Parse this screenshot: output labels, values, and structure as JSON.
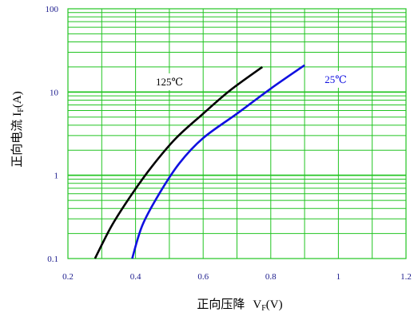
{
  "chart_data": {
    "type": "line",
    "xlabel": "正向压降",
    "xlabel_symbol": "V",
    "xlabel_sub": "F",
    "xlabel_unit": "(V)",
    "ylabel": "正向电流",
    "ylabel_symbol": "I",
    "ylabel_sub": "F",
    "ylabel_unit": "(A)",
    "xlim": [
      0.2,
      1.2
    ],
    "ylim": [
      0.1,
      100
    ],
    "y_scale": "log",
    "x_ticks": [
      "0.2",
      "0.4",
      "0.6",
      "0.8",
      "1",
      "1.2"
    ],
    "y_ticks": [
      "0.1",
      "1",
      "10",
      "100"
    ],
    "grid": true,
    "grid_color": "#22c422",
    "series": [
      {
        "name": "125℃",
        "color": "#000000",
        "points": [
          [
            0.28,
            0.1
          ],
          [
            0.33,
            0.25
          ],
          [
            0.39,
            0.6
          ],
          [
            0.45,
            1.3
          ],
          [
            0.52,
            2.8
          ],
          [
            0.6,
            5.5
          ],
          [
            0.68,
            10.5
          ],
          [
            0.775,
            20
          ]
        ]
      },
      {
        "name": "25℃",
        "color": "#1010e0",
        "points": [
          [
            0.39,
            0.1
          ],
          [
            0.42,
            0.25
          ],
          [
            0.47,
            0.6
          ],
          [
            0.53,
            1.4
          ],
          [
            0.6,
            2.8
          ],
          [
            0.7,
            5.5
          ],
          [
            0.8,
            11
          ],
          [
            0.9,
            21
          ]
        ]
      }
    ]
  }
}
